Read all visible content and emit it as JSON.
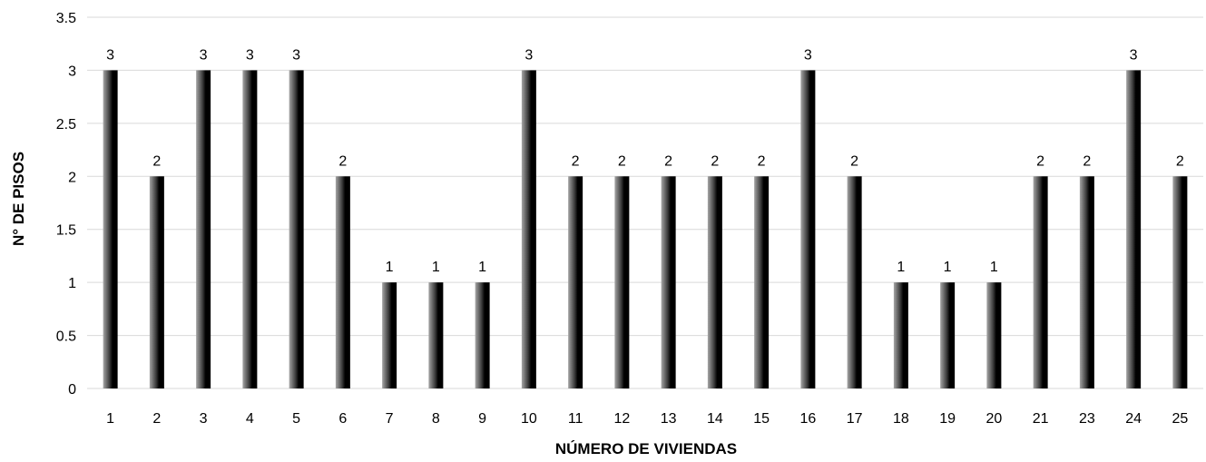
{
  "chart_data": {
    "type": "bar",
    "title": "",
    "xlabel": "NÚMERO DE VIVIENDAS",
    "ylabel": "N° DE PISOS",
    "categories": [
      "1",
      "2",
      "3",
      "4",
      "5",
      "6",
      "7",
      "8",
      "9",
      "10",
      "11",
      "12",
      "13",
      "14",
      "15",
      "16",
      "17",
      "18",
      "19",
      "20",
      "21",
      "23",
      "24",
      "25"
    ],
    "values": [
      3,
      2,
      3,
      3,
      3,
      2,
      1,
      1,
      1,
      3,
      2,
      2,
      2,
      2,
      2,
      3,
      2,
      1,
      1,
      1,
      2,
      2,
      3,
      2
    ],
    "data_labels": [
      "3",
      "2",
      "3",
      "3",
      "3",
      "2",
      "1",
      "1",
      "1",
      "3",
      "2",
      "2",
      "2",
      "2",
      "2",
      "3",
      "2",
      "1",
      "1",
      "1",
      "2",
      "2",
      "3",
      "2"
    ],
    "y_ticks": [
      "0",
      "0.5",
      "1",
      "1.5",
      "2",
      "2.5",
      "3",
      "3.5"
    ],
    "ylim": [
      0,
      3.5
    ],
    "grid": true,
    "legend": "none",
    "colors": {
      "bar_dark": "#000000",
      "bar_light": "#9a9a9a",
      "grid": "#d9d9d9"
    }
  }
}
